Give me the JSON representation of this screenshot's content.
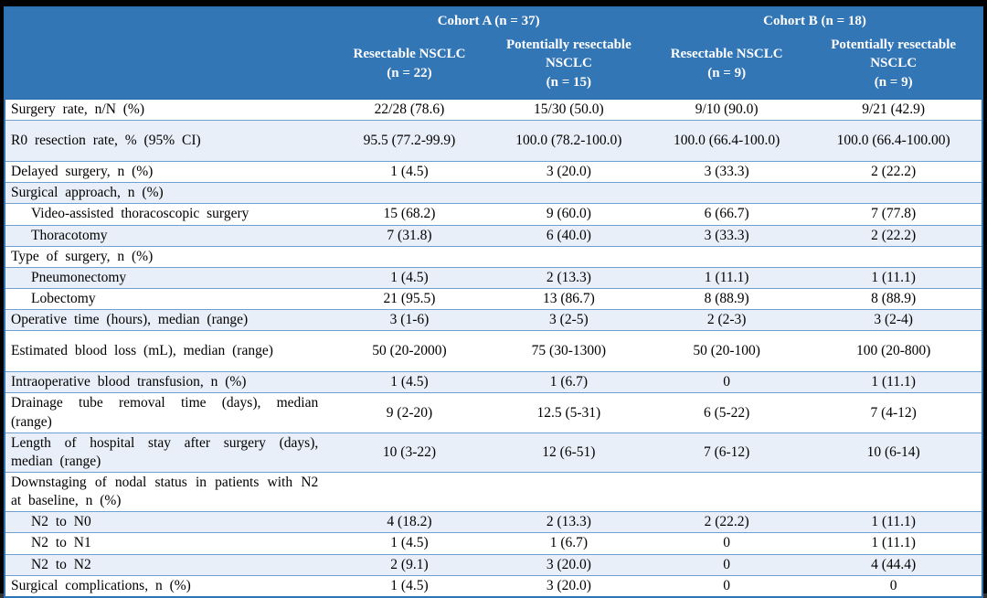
{
  "table": {
    "header": {
      "groups": [
        {
          "label": "Cohort A (n = 37)"
        },
        {
          "label": "Cohort B (n = 18)"
        }
      ],
      "columns": [
        {
          "title": "Resectable NSCLC",
          "n": "(n = 22)"
        },
        {
          "title": "Potentially resectable NSCLC",
          "n": "(n = 15)"
        },
        {
          "title": "Resectable NSCLC",
          "n": "(n = 9)"
        },
        {
          "title": "Potentially resectable NSCLC",
          "n": "(n = 9)"
        }
      ]
    },
    "rows": [
      {
        "label": "Surgery rate, n/N (%)",
        "indent": false,
        "tall": false,
        "values": [
          "22/28 (78.6)",
          "15/30 (50.0)",
          "9/10 (90.0)",
          "9/21 (42.9)"
        ]
      },
      {
        "label": "R0 resection rate, % (95% CI)",
        "indent": false,
        "tall": true,
        "values": [
          "95.5 (77.2-99.9)",
          "100.0 (78.2-100.0)",
          "100.0 (66.4-100.0)",
          "100.0 (66.4-100.00)"
        ]
      },
      {
        "label": "Delayed surgery, n (%)",
        "indent": false,
        "tall": false,
        "values": [
          "1 (4.5)",
          "3 (20.0)",
          "3 (33.3)",
          "2 (22.2)"
        ]
      },
      {
        "label": "Surgical approach, n (%)",
        "indent": false,
        "tall": false,
        "values": [
          "",
          "",
          "",
          ""
        ]
      },
      {
        "label": "Video-assisted thoracoscopic surgery",
        "indent": true,
        "tall": false,
        "values": [
          "15 (68.2)",
          "9 (60.0)",
          "6 (66.7)",
          "7 (77.8)"
        ]
      },
      {
        "label": "Thoracotomy",
        "indent": true,
        "tall": false,
        "values": [
          "7 (31.8)",
          "6 (40.0)",
          "3 (33.3)",
          "2 (22.2)"
        ]
      },
      {
        "label": "Type of surgery, n (%)",
        "indent": false,
        "tall": false,
        "values": [
          "",
          "",
          "",
          ""
        ]
      },
      {
        "label": "Pneumonectomy",
        "indent": true,
        "tall": false,
        "values": [
          "1 (4.5)",
          "2 (13.3)",
          "1 (11.1)",
          "1 (11.1)"
        ]
      },
      {
        "label": "Lobectomy",
        "indent": true,
        "tall": false,
        "values": [
          "21 (95.5)",
          "13 (86.7)",
          "8 (88.9)",
          "8 (88.9)"
        ]
      },
      {
        "label": "Operative time (hours), median (range)",
        "indent": false,
        "tall": false,
        "values": [
          "3 (1-6)",
          "3 (2-5)",
          "2 (2-3)",
          "3 (2-4)"
        ]
      },
      {
        "label": "Estimated blood loss (mL), median (range)",
        "indent": false,
        "tall": true,
        "values": [
          "50 (20-2000)",
          "75 (30-1300)",
          "50 (20-100)",
          "100 (20-800)"
        ]
      },
      {
        "label": "Intraoperative blood transfusion, n (%)",
        "indent": false,
        "tall": false,
        "values": [
          "1 (4.5)",
          "1 (6.7)",
          "0",
          "1 (11.1)"
        ]
      },
      {
        "label": "Drainage tube removal time (days), median (range)",
        "indent": false,
        "tall": false,
        "values": [
          "9 (2-20)",
          "12.5 (5-31)",
          "6 (5-22)",
          "7 (4-12)"
        ]
      },
      {
        "label": "Length of hospital stay after surgery (days), median (range)",
        "indent": false,
        "tall": false,
        "values": [
          "10 (3-22)",
          "12 (6-51)",
          "7 (6-12)",
          "10 (6-14)"
        ]
      },
      {
        "label": "Downstaging of nodal status in patients with N2 at baseline, n (%)",
        "indent": false,
        "tall": false,
        "values": [
          "",
          "",
          "",
          ""
        ]
      },
      {
        "label": "N2 to N0",
        "indent": true,
        "tall": false,
        "values": [
          "4 (18.2)",
          "2 (13.3)",
          "2 (22.2)",
          "1 (11.1)"
        ]
      },
      {
        "label": "N2 to N1",
        "indent": true,
        "tall": false,
        "values": [
          "1 (4.5)",
          "1 (6.7)",
          "0",
          "1 (11.1)"
        ]
      },
      {
        "label": "N2 to N2",
        "indent": true,
        "tall": false,
        "values": [
          "2 (9.1)",
          "3 (20.0)",
          "0",
          "4 (44.4)"
        ]
      },
      {
        "label": "Surgical complications, n (%)",
        "indent": false,
        "tall": false,
        "values": [
          "1 (4.5)",
          "3 (20.0)",
          "0",
          "0"
        ]
      }
    ]
  },
  "colors": {
    "frame": "#000000",
    "header_bg": "#3376B6",
    "header_text": "#FFFFFF",
    "body_text": "#000000",
    "stripe": "#E9EFF8",
    "row_border": "#6FA0D0",
    "outer_border": "#2E74B5"
  }
}
